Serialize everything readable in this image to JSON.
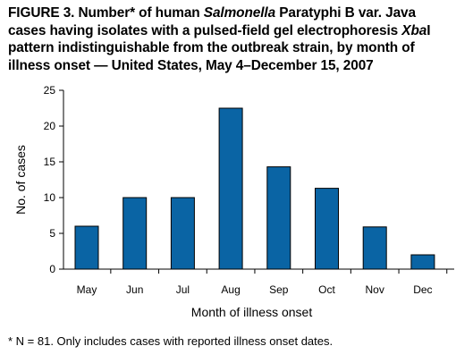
{
  "figure": {
    "title_parts": [
      {
        "text": "FIGURE 3. Number* of human ",
        "italic": false
      },
      {
        "text": "Salmonella",
        "italic": true
      },
      {
        "text": " Paratyphi B var. Java cases having isolates with a pulsed-field gel electrophoresis ",
        "italic": false
      },
      {
        "text": "Xba",
        "italic": true
      },
      {
        "text": "I pattern indistinguishable from the outbreak strain, by month of illness onset — United States, May 4–December 15, 2007",
        "italic": false
      }
    ],
    "footnote": "* N = 81. Only includes cases with reported illness onset dates."
  },
  "chart_data": {
    "type": "bar",
    "categories": [
      "May",
      "Jun",
      "Jul",
      "Aug",
      "Sep",
      "Oct",
      "Nov",
      "Dec"
    ],
    "values": [
      6,
      10,
      10,
      22.5,
      14.3,
      11.3,
      5.9,
      2
    ],
    "xlabel": "Month of illness onset",
    "ylabel": "No. of cases",
    "ylim": [
      0,
      25
    ],
    "yticks": [
      "0",
      "5",
      "10",
      "15",
      "20",
      "25"
    ],
    "bar_color": "#0a64a4",
    "grid": false
  }
}
